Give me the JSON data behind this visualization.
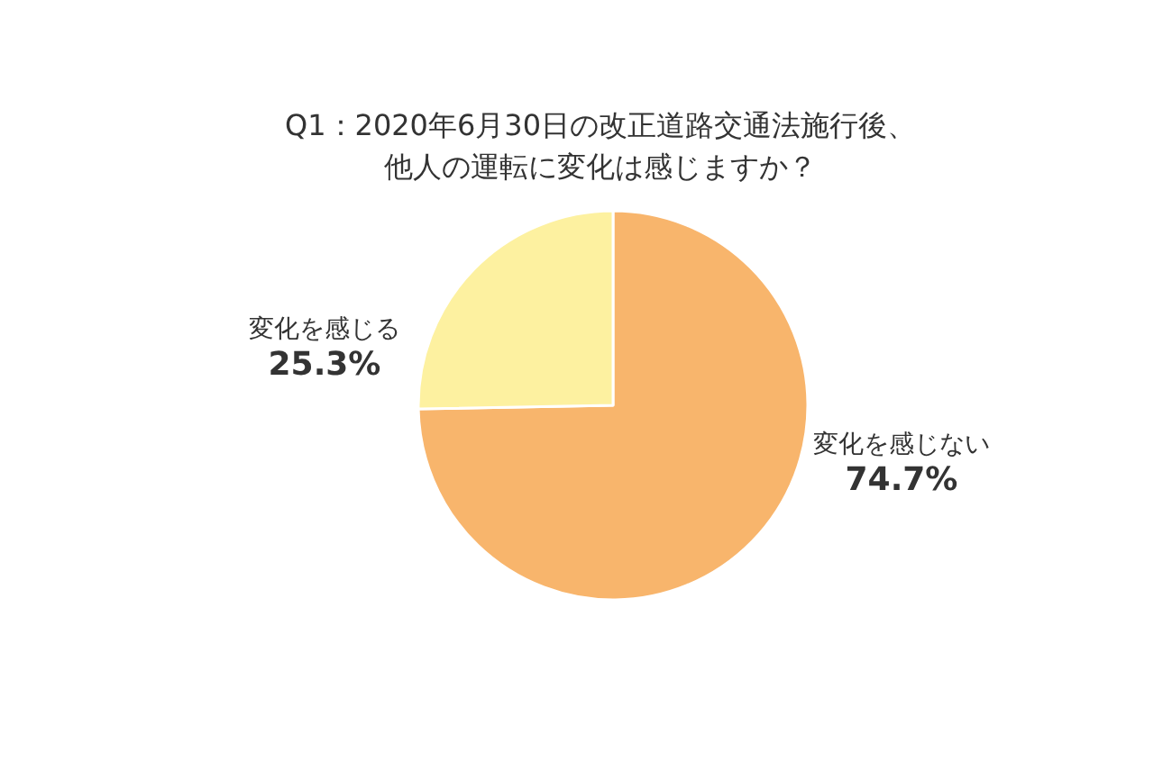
{
  "chart_data": {
    "type": "pie",
    "title": "Q1：2020年6月30日の改正道路交通法施行後、他人の運転に変化は感じますか？",
    "categories": [
      "変化を感じない",
      "変化を感じる"
    ],
    "values": [
      74.7,
      25.3
    ],
    "colors": [
      "#f8b56c",
      "#fdf1a0"
    ],
    "value_labels": [
      "74.7%",
      "25.3%"
    ]
  }
}
